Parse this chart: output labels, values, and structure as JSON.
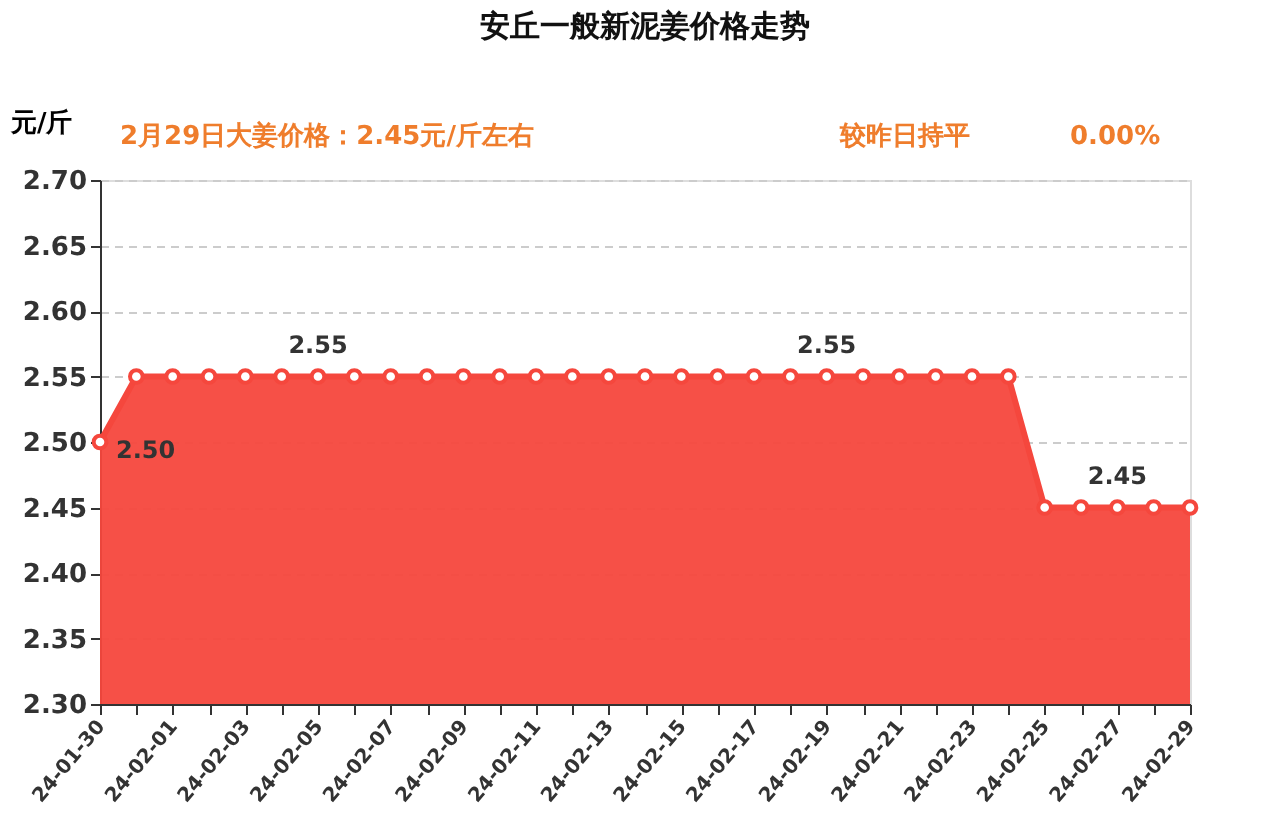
{
  "chart_data": {
    "type": "area",
    "title": "安丘一般新泥姜价格走势",
    "ylabel": "元/斤",
    "categories": [
      "24-01-30",
      null,
      "24-02-01",
      null,
      "24-02-03",
      null,
      "24-02-05",
      null,
      "24-02-07",
      null,
      "24-02-09",
      null,
      "24-02-11",
      null,
      "24-02-13",
      null,
      "24-02-15",
      null,
      "24-02-17",
      null,
      "24-02-19",
      null,
      "24-02-21",
      null,
      "24-02-23",
      null,
      "24-02-25",
      null,
      "24-02-27",
      null,
      "24-02-29"
    ],
    "series": [
      {
        "color": "#f5473d",
        "values": [
          2.5,
          2.55,
          2.55,
          2.55,
          2.55,
          2.55,
          2.55,
          2.55,
          2.55,
          2.55,
          2.55,
          2.55,
          2.55,
          2.55,
          2.55,
          2.55,
          2.55,
          2.55,
          2.55,
          2.55,
          2.55,
          2.55,
          2.55,
          2.55,
          2.55,
          2.55,
          2.45,
          2.45,
          2.45,
          2.45,
          2.45
        ]
      }
    ],
    "ylim": [
      2.3,
      2.7
    ],
    "yticks": [
      {
        "value": 2.3,
        "label": "2.30"
      },
      {
        "value": 2.35,
        "label": "2.35"
      },
      {
        "value": 2.4,
        "label": "2.40"
      },
      {
        "value": 2.45,
        "label": "2.45"
      },
      {
        "value": 2.5,
        "label": "2.50"
      },
      {
        "value": 2.55,
        "label": "2.55"
      },
      {
        "value": 2.6,
        "label": "2.60"
      },
      {
        "value": 2.65,
        "label": "2.65"
      },
      {
        "value": 2.7,
        "label": "2.70"
      }
    ],
    "grid": "y",
    "marker": "circle",
    "annotations": [
      "2月29日大姜价格：2.45元/斤左右",
      "较昨日持平",
      "0.00%",
      {
        "text": "2.50",
        "x": "24-01-30",
        "y": 2.5
      },
      {
        "text": "2.55",
        "x": "24-02-05",
        "y": 2.55
      },
      {
        "text": "2.55",
        "x": "24-02-19",
        "y": 2.55
      },
      {
        "text": "2.45",
        "x": "24-02-27",
        "y": 2.45
      }
    ]
  }
}
